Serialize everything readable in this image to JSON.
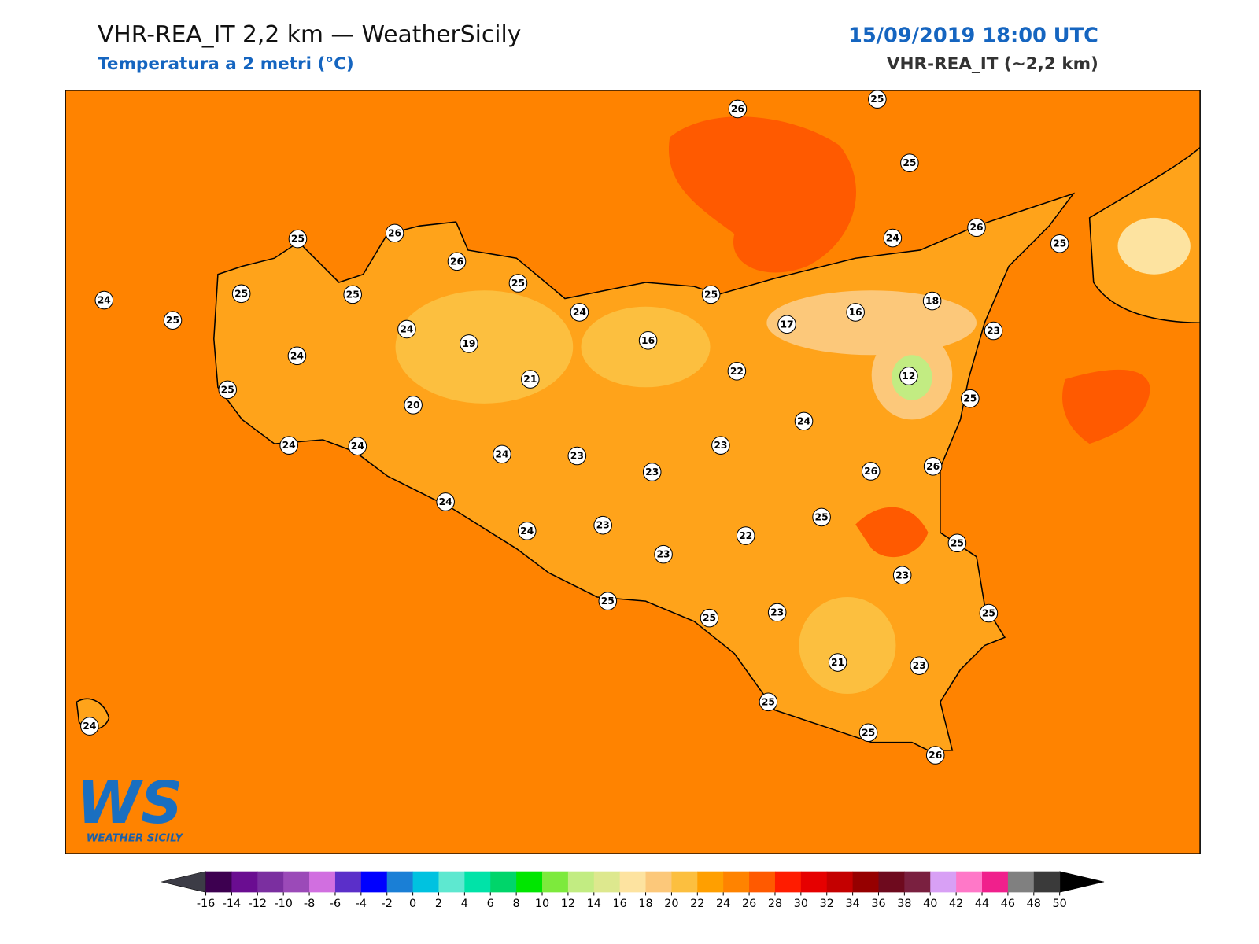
{
  "header": {
    "title": "VHR-REA_IT 2,2 km — WeatherSicily",
    "subtitle": "Temperatura a 2 metri (°C)",
    "date": "15/09/2019 18:00 UTC",
    "model": "VHR-REA_IT (~2,2 km)"
  },
  "logo": {
    "mark": "WS",
    "name": "WEATHER SICILY"
  },
  "stations": [
    26,
    25,
    25,
    25,
    26,
    26,
    25,
    25,
    25,
    24,
    25,
    24,
    25,
    24,
    26,
    25,
    16,
    17,
    18,
    23,
    24,
    19,
    16,
    24,
    22,
    12,
    21,
    25,
    20,
    25,
    24,
    24,
    24,
    24,
    23,
    23,
    23,
    26,
    26,
    24,
    24,
    23,
    25,
    22,
    23,
    25,
    23,
    25,
    25,
    23,
    25,
    21,
    23,
    25,
    25,
    26,
    24
  ],
  "colorbar": {
    "ticks": [
      -16,
      -14,
      -12,
      -10,
      -8,
      -6,
      -4,
      -2,
      0,
      2,
      4,
      6,
      8,
      10,
      12,
      14,
      16,
      18,
      20,
      22,
      24,
      26,
      28,
      30,
      32,
      34,
      36,
      38,
      40,
      42,
      44,
      46,
      48,
      50
    ],
    "colors": [
      "#3d0050",
      "#6a0d91",
      "#7b2fa0",
      "#9b4ab8",
      "#d16fe0",
      "#5b2fc9",
      "#0000ff",
      "#1a7fd6",
      "#00c2e0",
      "#5ee8d0",
      "#00e3a8",
      "#00d56a",
      "#00e600",
      "#7dea3c",
      "#c2ec82",
      "#dde88e",
      "#fde3a0",
      "#fcc87a",
      "#fcbf3f",
      "#ff9f00",
      "#ff8300",
      "#ff5a00",
      "#ff1c00",
      "#e60000",
      "#c40000",
      "#960000",
      "#6e0a1e",
      "#7a2040",
      "#d8a0f5",
      "#ff78c8",
      "#f0208c",
      "#808080",
      "#3a3a3a"
    ],
    "extend_colors": [
      "#3c3c46",
      "#000000"
    ]
  }
}
